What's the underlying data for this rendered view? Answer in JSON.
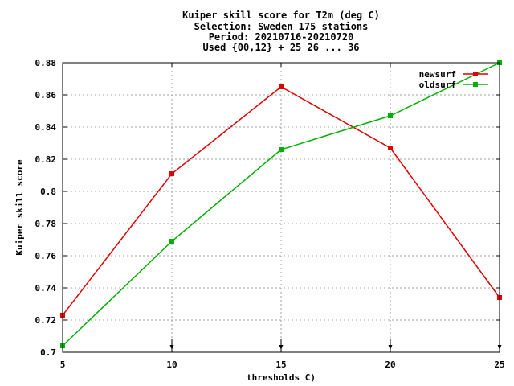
{
  "chart_data": {
    "type": "line",
    "title_lines": [
      "Kuiper skill score  for T2m (deg C)",
      "Selection: Sweden    175 stations",
      "Period: 20210716-20210720",
      "Used {00,12} + 25 26 ... 36"
    ],
    "xlabel": "thresholds C)",
    "ylabel": "Kuiper skill score",
    "xlim": [
      5,
      25
    ],
    "ylim": [
      0.7,
      0.88
    ],
    "x_ticks": [
      5,
      10,
      15,
      20,
      25
    ],
    "y_ticks": [
      0.7,
      0.72,
      0.74,
      0.76,
      0.78,
      0.8,
      0.82,
      0.84,
      0.86,
      0.88
    ],
    "x_tick_labels": [
      "5",
      "10",
      "15",
      "20",
      "25"
    ],
    "y_tick_labels": [
      "0.7",
      "0.72",
      "0.74",
      "0.76",
      "0.78",
      "0.8",
      "0.82",
      "0.84",
      "0.86",
      "0.88"
    ],
    "grid": true,
    "legend_position": "top-right",
    "x": [
      5,
      10,
      15,
      20,
      25
    ],
    "series": [
      {
        "name": "newsurf",
        "color": "#e00000",
        "values": [
          0.723,
          0.811,
          0.865,
          0.827,
          0.734
        ]
      },
      {
        "name": "oldsurf",
        "color": "#00b000",
        "values": [
          0.704,
          0.769,
          0.826,
          0.847,
          0.88
        ]
      }
    ],
    "markers": "small arrow markers at bottom of each x tick"
  }
}
